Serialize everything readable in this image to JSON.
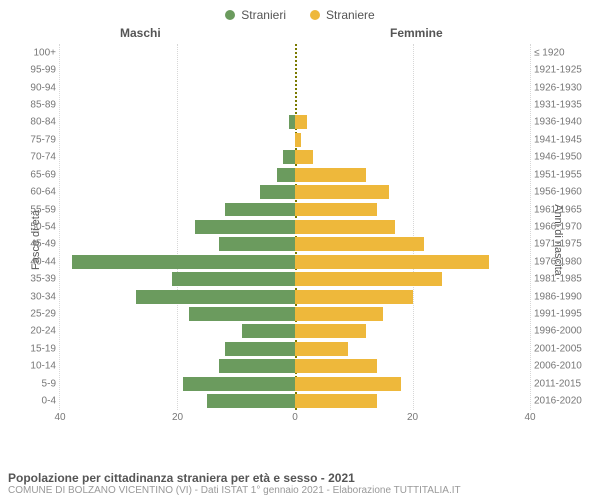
{
  "legend": {
    "male": {
      "label": "Stranieri",
      "color": "#6b9b5e"
    },
    "female": {
      "label": "Straniere",
      "color": "#eeb83b"
    }
  },
  "headers": {
    "male": "Maschi",
    "female": "Femmine"
  },
  "axes": {
    "left_label": "Fasce di età",
    "right_label": "Anni di nascita",
    "x_max": 40,
    "x_ticks": [
      0,
      20,
      40
    ],
    "label_fontsize": 11,
    "tick_fontsize": 10,
    "tick_color": "#777777",
    "grid_color": "#d7d7d7",
    "center_line_color": "#7a7a00"
  },
  "chart": {
    "type": "population-pyramid",
    "background_color": "#ffffff",
    "bar_height_ratio": 0.8
  },
  "rows": [
    {
      "age": "100+",
      "birth": "≤ 1920",
      "m": 0,
      "f": 0
    },
    {
      "age": "95-99",
      "birth": "1921-1925",
      "m": 0,
      "f": 0
    },
    {
      "age": "90-94",
      "birth": "1926-1930",
      "m": 0,
      "f": 0
    },
    {
      "age": "85-89",
      "birth": "1931-1935",
      "m": 0,
      "f": 0
    },
    {
      "age": "80-84",
      "birth": "1936-1940",
      "m": 1,
      "f": 2
    },
    {
      "age": "75-79",
      "birth": "1941-1945",
      "m": 0,
      "f": 1
    },
    {
      "age": "70-74",
      "birth": "1946-1950",
      "m": 2,
      "f": 3
    },
    {
      "age": "65-69",
      "birth": "1951-1955",
      "m": 3,
      "f": 12
    },
    {
      "age": "60-64",
      "birth": "1956-1960",
      "m": 6,
      "f": 16
    },
    {
      "age": "55-59",
      "birth": "1961-1965",
      "m": 12,
      "f": 14
    },
    {
      "age": "50-54",
      "birth": "1966-1970",
      "m": 17,
      "f": 17
    },
    {
      "age": "45-49",
      "birth": "1971-1975",
      "m": 13,
      "f": 22
    },
    {
      "age": "40-44",
      "birth": "1976-1980",
      "m": 38,
      "f": 33
    },
    {
      "age": "35-39",
      "birth": "1981-1985",
      "m": 21,
      "f": 25
    },
    {
      "age": "30-34",
      "birth": "1986-1990",
      "m": 27,
      "f": 20
    },
    {
      "age": "25-29",
      "birth": "1991-1995",
      "m": 18,
      "f": 15
    },
    {
      "age": "20-24",
      "birth": "1996-2000",
      "m": 9,
      "f": 12
    },
    {
      "age": "15-19",
      "birth": "2001-2005",
      "m": 12,
      "f": 9
    },
    {
      "age": "10-14",
      "birth": "2006-2010",
      "m": 13,
      "f": 14
    },
    {
      "age": "5-9",
      "birth": "2011-2015",
      "m": 19,
      "f": 18
    },
    {
      "age": "0-4",
      "birth": "2016-2020",
      "m": 15,
      "f": 14
    }
  ],
  "footer": {
    "title": "Popolazione per cittadinanza straniera per età e sesso - 2021",
    "subtitle": "COMUNE DI BOLZANO VICENTINO (VI) - Dati ISTAT 1° gennaio 2021 - Elaborazione TUTTITALIA.IT"
  }
}
